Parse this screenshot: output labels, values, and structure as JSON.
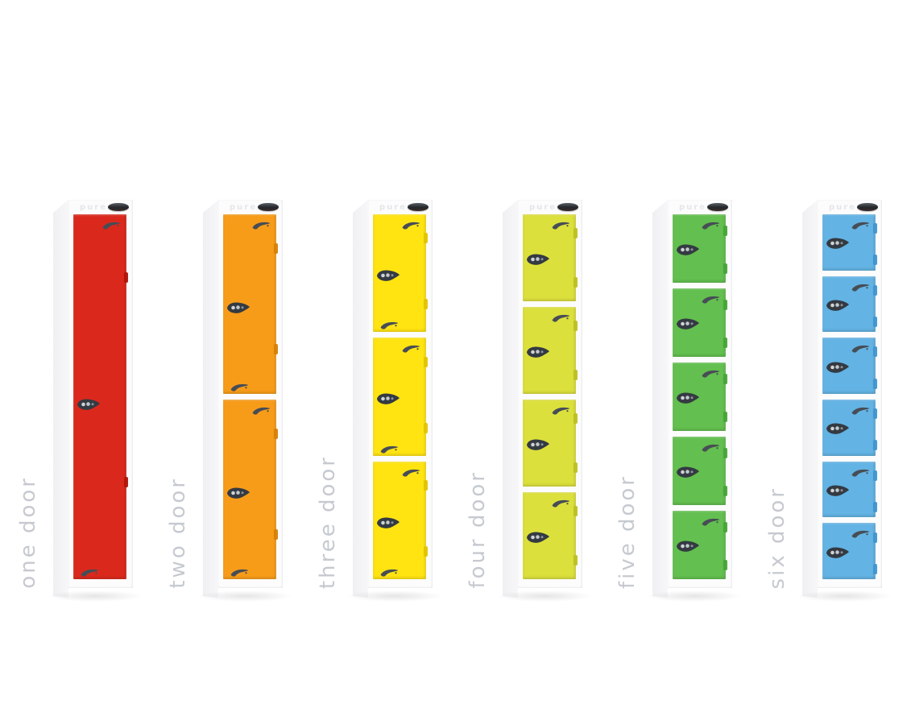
{
  "brand": {
    "name": "pure"
  },
  "label_style": {
    "color": "#c6cad0"
  },
  "lockers": [
    {
      "label": "one door",
      "doors": 1,
      "door_color": "#da291c",
      "hinge_color": "#b01408"
    },
    {
      "label": "two door",
      "doors": 2,
      "door_color": "#f79c19",
      "hinge_color": "#d67f06"
    },
    {
      "label": "three door",
      "doors": 3,
      "door_color": "#ffe412",
      "hinge_color": "#e0c400"
    },
    {
      "label": "four door",
      "doors": 4,
      "door_color": "#dce03c",
      "hinge_color": "#bcc021"
    },
    {
      "label": "five door",
      "doors": 5,
      "door_color": "#63bf4f",
      "hinge_color": "#46a437"
    },
    {
      "label": "six door",
      "doors": 6,
      "door_color": "#63b3e4",
      "hinge_color": "#3f95cf"
    }
  ],
  "icons": {
    "badge": "brand-badge",
    "swoosh": "brand-swoosh-icon",
    "lock": "latch-lock-icon"
  }
}
